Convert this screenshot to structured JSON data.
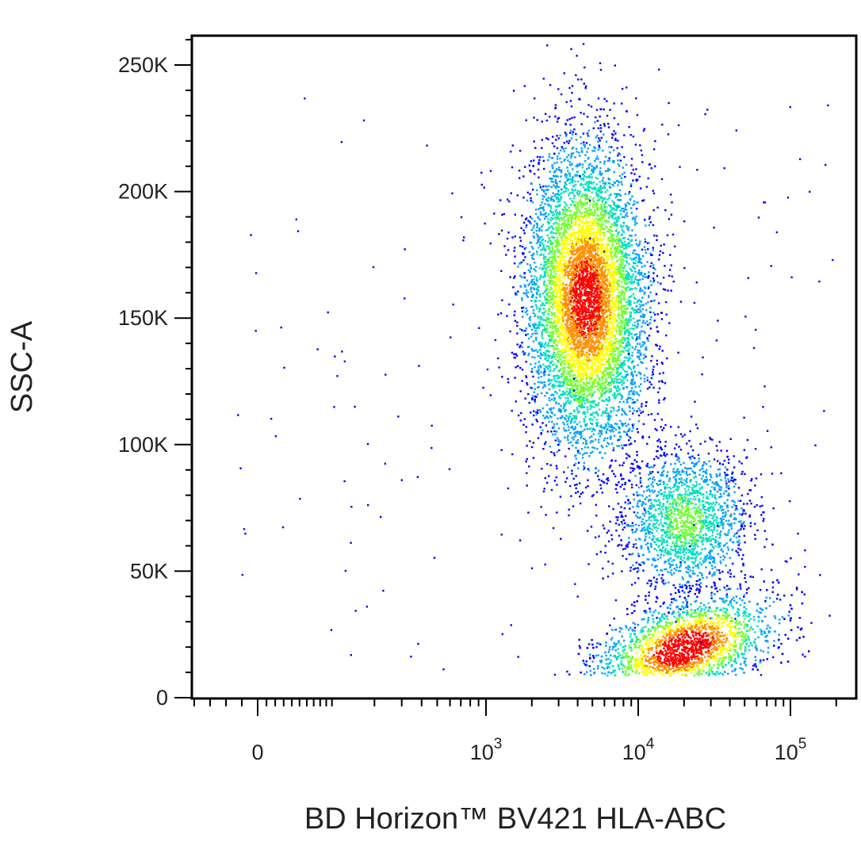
{
  "chart_data": {
    "type": "scatter",
    "xlabel": "BD Horizon™ BV421 HLA-ABC",
    "ylabel": "SSC-A",
    "x_scale": "biexponential",
    "y_scale": "linear",
    "ylim": [
      -3000,
      262000
    ],
    "xlim": [
      -400,
      250000
    ],
    "grid": false,
    "y_ticks": [
      {
        "value": 0,
        "label": "0"
      },
      {
        "value": 50000,
        "label": "50K"
      },
      {
        "value": 100000,
        "label": "100K"
      },
      {
        "value": 150000,
        "label": "150K"
      },
      {
        "value": 200000,
        "label": "200K"
      },
      {
        "value": 250000,
        "label": "250K"
      }
    ],
    "x_ticks": [
      {
        "value": 0,
        "base": "0",
        "exp": ""
      },
      {
        "value": 1000,
        "base": "10",
        "exp": "3"
      },
      {
        "value": 10000,
        "base": "10",
        "exp": "4"
      },
      {
        "value": 100000,
        "base": "10",
        "exp": "5"
      }
    ],
    "density_colors": [
      "#0000ff",
      "#00a0ff",
      "#00e0c0",
      "#70ff30",
      "#ffff00",
      "#ff9000",
      "#ff0000"
    ],
    "populations": [
      {
        "x_center": 4500,
        "y_center": 158000,
        "events": 7000,
        "peak_density": 0.9
      },
      {
        "x_center": 20000,
        "y_center": 70000,
        "events": 1800,
        "peak_density": 0.45
      },
      {
        "x_center": 20000,
        "y_center": 20000,
        "events": 3500,
        "peak_density": 1.0
      }
    ]
  }
}
